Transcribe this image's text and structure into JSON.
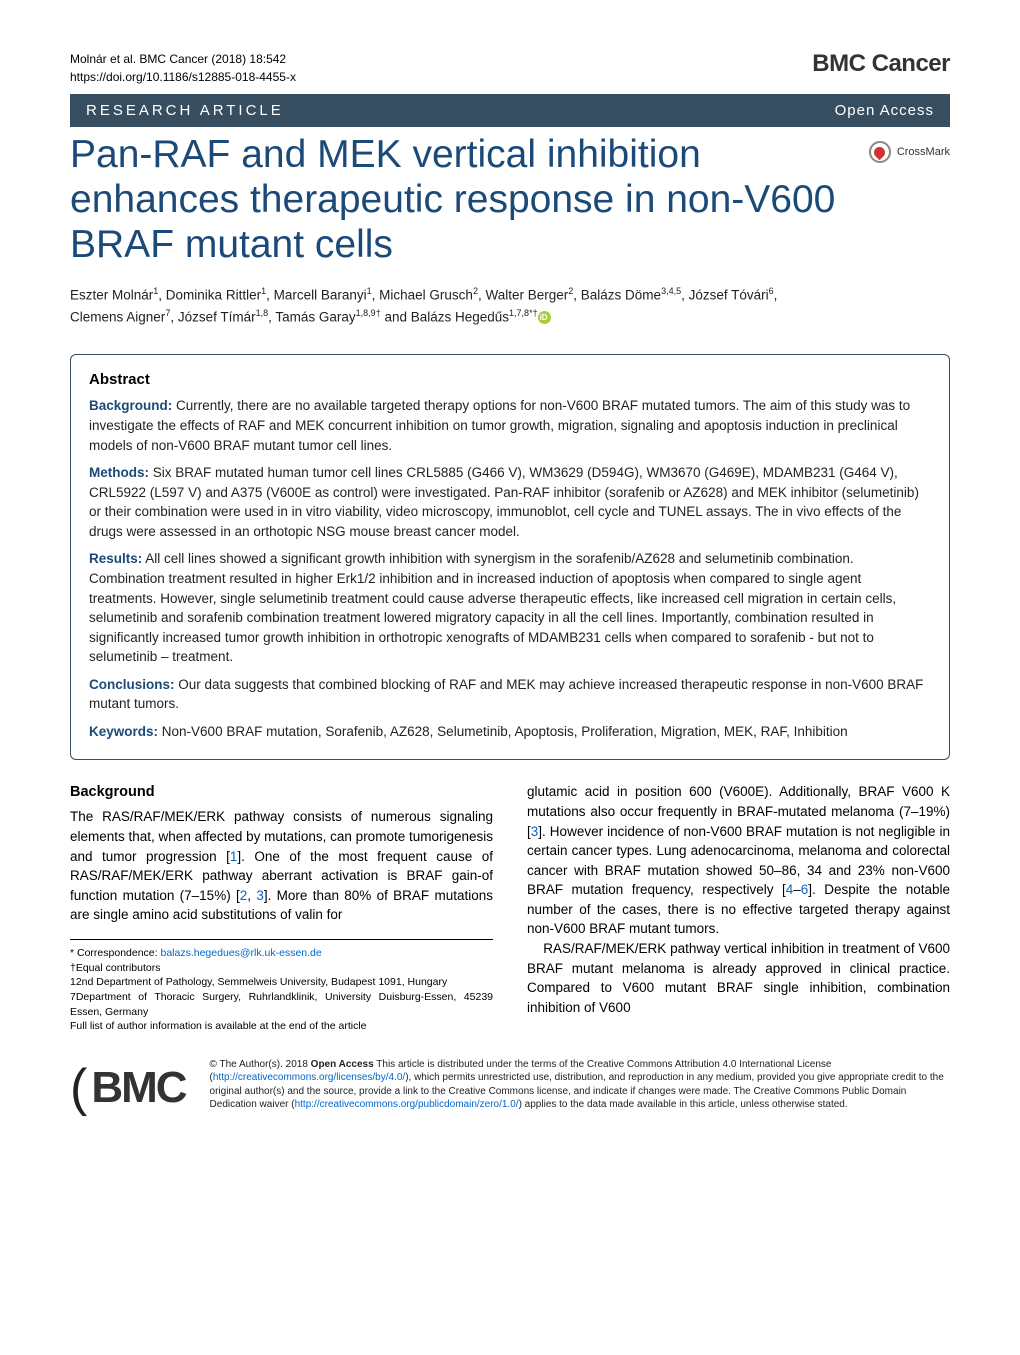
{
  "meta": {
    "citation": "Molnár et al. BMC Cancer (2018) 18:542",
    "doi": "https://doi.org/10.1186/s12885-018-4455-x",
    "journal": "BMC Cancer"
  },
  "banner": {
    "type": "RESEARCH ARTICLE",
    "access": "Open Access"
  },
  "crossmark": "CrossMark",
  "title": "Pan-RAF and MEK vertical inhibition enhances therapeutic response in non-V600 BRAF mutant cells",
  "authors": {
    "line1_a": "Eszter Molnár",
    "line1_a_sup": "1",
    "line1_b": ", Dominika Rittler",
    "line1_b_sup": "1",
    "line1_c": ", Marcell Baranyi",
    "line1_c_sup": "1",
    "line1_d": ", Michael Grusch",
    "line1_d_sup": "2",
    "line1_e": ", Walter Berger",
    "line1_e_sup": "2",
    "line1_f": ", Balázs Döme",
    "line1_f_sup": "3,4,5",
    "line1_g": ", József Tóvári",
    "line1_g_sup": "6",
    "line1_h": ",",
    "line2_a": "Clemens Aigner",
    "line2_a_sup": "7",
    "line2_b": ", József Tímár",
    "line2_b_sup": "1,8",
    "line2_c": ", Tamás Garay",
    "line2_c_sup": "1,8,9†",
    "line2_d": " and Balázs Hegedűs",
    "line2_d_sup": "1,7,8*†"
  },
  "abstract": {
    "heading": "Abstract",
    "background_label": "Background:",
    "background": " Currently, there are no available targeted therapy options for non-V600 BRAF mutated tumors. The aim of this study was to investigate the effects of RAF and MEK concurrent inhibition on tumor growth, migration, signaling and apoptosis induction in preclinical models of non-V600 BRAF mutant tumor cell lines.",
    "methods_label": "Methods:",
    "methods": " Six BRAF mutated human tumor cell lines CRL5885 (G466 V), WM3629 (D594G), WM3670 (G469E), MDAMB231 (G464 V), CRL5922 (L597 V) and A375 (V600E as control) were investigated. Pan-RAF inhibitor (sorafenib or AZ628) and MEK inhibitor (selumetinib) or their combination were used in in vitro viability, video microscopy, immunoblot, cell cycle and TUNEL assays. The in vivo effects of the drugs were assessed in an orthotopic NSG mouse breast cancer model.",
    "results_label": "Results:",
    "results": " All cell lines showed a significant growth inhibition with synergism in the sorafenib/AZ628 and selumetinib combination. Combination treatment resulted in higher Erk1/2 inhibition and in increased induction of apoptosis when compared to single agent treatments. However, single selumetinib treatment could cause adverse therapeutic effects, like increased cell migration in certain cells, selumetinib and sorafenib combination treatment lowered migratory capacity in all the cell lines. Importantly, combination resulted in significantly increased tumor growth inhibition in orthotropic xenografts of MDAMB231 cells when compared to sorafenib - but not to selumetinib – treatment.",
    "conclusions_label": "Conclusions:",
    "conclusions": " Our data suggests that combined blocking of RAF and MEK may achieve increased therapeutic response in non-V600 BRAF mutant tumors.",
    "keywords_label": "Keywords:",
    "keywords": " Non-V600 BRAF mutation, Sorafenib, AZ628, Selumetinib, Apoptosis, Proliferation, Migration, MEK, RAF, Inhibition"
  },
  "body": {
    "background_heading": "Background",
    "left_para_a": "The RAS/RAF/MEK/ERK pathway consists of numerous signaling elements that, when affected by mutations, can promote tumorigenesis and tumor progression [",
    "ref1": "1",
    "left_para_b": "]. One of the most frequent cause of RAS/RAF/MEK/ERK pathway aberrant activation is BRAF gain-of function mutation (7–15%) [",
    "ref2": "2",
    "left_para_c": ", ",
    "ref3": "3",
    "left_para_d": "]. More than 80% of BRAF mutations are single amino acid substitutions of valin for",
    "right_para1_a": "glutamic acid in position 600 (V600E). Additionally, BRAF V600 K mutations also occur frequently in BRAF-mutated melanoma (7–19%) [",
    "ref3b": "3",
    "right_para1_b": "]. However incidence of non-V600 BRAF mutation is not negligible in certain cancer types. Lung adenocarcinoma, melanoma and colorectal cancer with BRAF mutation showed 50–86, 34 and 23% non-V600 BRAF mutation frequency, respectively [",
    "ref4": "4",
    "right_para1_c": "–",
    "ref6": "6",
    "right_para1_d": "]. Despite the notable number of the cases, there is no effective targeted therapy against non-V600 BRAF mutant tumors.",
    "right_para2": "RAS/RAF/MEK/ERK pathway vertical inhibition in treatment of V600 BRAF mutant melanoma is already approved in clinical practice. Compared to V600 mutant BRAF single inhibition, combination inhibition of V600"
  },
  "footnotes": {
    "corr_label": "* Correspondence: ",
    "corr_email": "balazs.hegedues@rlk.uk-essen.de",
    "equal": "†Equal contributors",
    "aff1": "12nd Department of Pathology, Semmelweis University, Budapest 1091, Hungary",
    "aff7": "7Department of Thoracic Surgery, Ruhrlandklinik, University Duisburg-Essen, 45239 Essen, Germany",
    "full": "Full list of author information is available at the end of the article"
  },
  "footer": {
    "logo_text": "BMC",
    "license_a": "© The Author(s). 2018 ",
    "license_oa": "Open Access",
    "license_b": " This article is distributed under the terms of the Creative Commons Attribution 4.0 International License (",
    "cc_url": "http://creativecommons.org/licenses/by/4.0/",
    "license_c": "), which permits unrestricted use, distribution, and reproduction in any medium, provided you give appropriate credit to the original author(s) and the source, provide a link to the Creative Commons license, and indicate if changes were made. The Creative Commons Public Domain Dedication waiver (",
    "pd_url": "http://creativecommons.org/publicdomain/zero/1.0/",
    "license_d": ") applies to the data made available in this article, unless otherwise stated."
  },
  "colors": {
    "banner_bg": "#364e60",
    "title_color": "#1c4a78",
    "link_color": "#0066cc",
    "orcid_bg": "#a6ce39"
  }
}
